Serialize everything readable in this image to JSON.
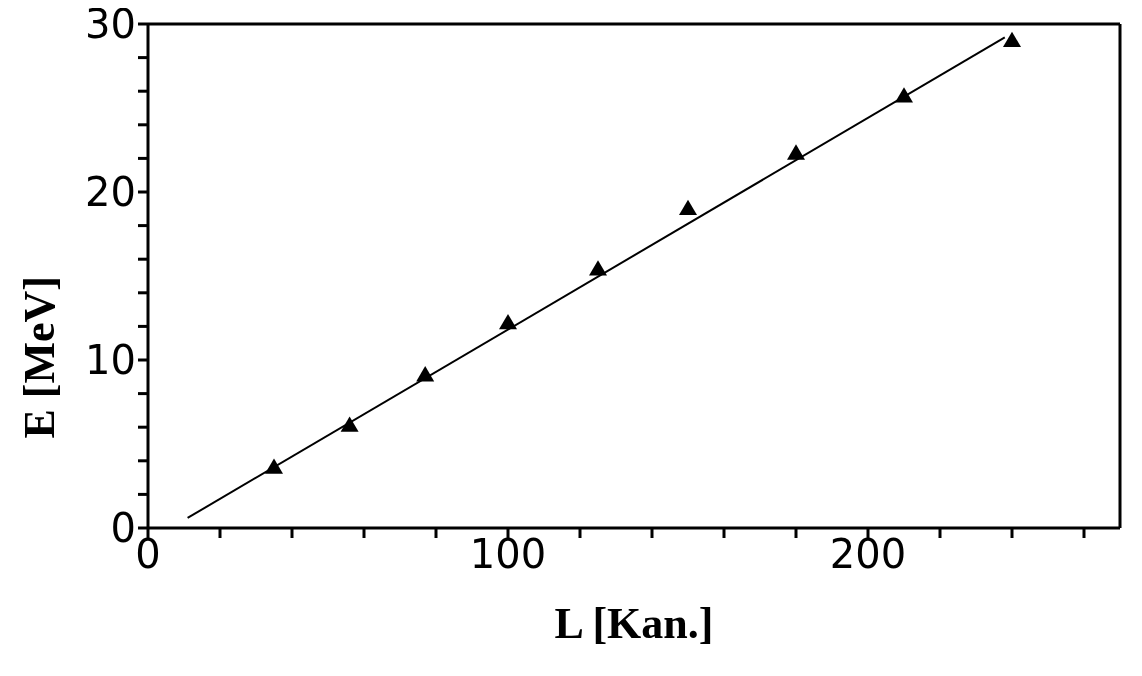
{
  "chart_data": {
    "type": "scatter",
    "xlabel": "L [Kan.]",
    "ylabel": "E [MeV]",
    "xlim": [
      0,
      270
    ],
    "ylim": [
      0,
      30
    ],
    "xticks": [
      0,
      {
        "value": 20,
        "label": null
      },
      {
        "value": 40,
        "label": null
      },
      {
        "value": 60,
        "label": null
      },
      {
        "value": 80,
        "label": null
      },
      100,
      {
        "value": 120,
        "label": null
      },
      {
        "value": 140,
        "label": null
      },
      {
        "value": 160,
        "label": null
      },
      {
        "value": 180,
        "label": null
      },
      200,
      {
        "value": 220,
        "label": null
      },
      {
        "value": 240,
        "label": null
      },
      {
        "value": 260,
        "label": null
      }
    ],
    "yticks": [
      0,
      {
        "value": 2,
        "label": null
      },
      {
        "value": 4,
        "label": null
      },
      {
        "value": 6,
        "label": null
      },
      {
        "value": 8,
        "label": null
      },
      10,
      {
        "value": 12,
        "label": null
      },
      {
        "value": 14,
        "label": null
      },
      {
        "value": 16,
        "label": null
      },
      {
        "value": 18,
        "label": null
      },
      20,
      {
        "value": 22,
        "label": null
      },
      {
        "value": 24,
        "label": null
      },
      {
        "value": 26,
        "label": null
      },
      {
        "value": 28,
        "label": null
      },
      30
    ],
    "legend": false,
    "series": [
      {
        "color": "#000000",
        "marker": "triangle",
        "x": [
          35,
          56,
          77,
          100,
          125,
          150,
          180,
          210,
          240
        ],
        "values": [
          3.6,
          6.1,
          9.1,
          12.2,
          15.4,
          19.0,
          22.3,
          25.7,
          29.0
        ]
      },
      {
        "type": "line",
        "color": "#000000",
        "marker": "none",
        "line_style": "solid",
        "x": [
          11,
          238
        ],
        "values": [
          0.6,
          29.2
        ]
      }
    ]
  }
}
